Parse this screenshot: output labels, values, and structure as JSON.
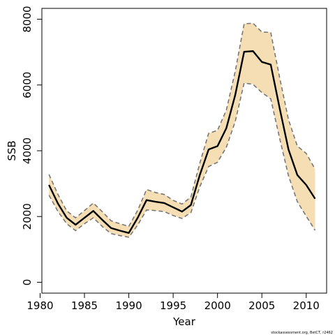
{
  "chart_data": {
    "type": "line",
    "title": "",
    "xlabel": "Year",
    "ylabel": "SSB",
    "xlim": [
      1980.2,
      2012.3
    ],
    "ylim": [
      -330,
      8330
    ],
    "x_ticks": [
      1980,
      1985,
      1990,
      1995,
      2000,
      2005,
      2010
    ],
    "y_ticks": [
      0,
      2000,
      4000,
      6000,
      8000
    ],
    "grid": false,
    "legend": "none",
    "x": [
      1981,
      1982,
      1983,
      1984,
      1985,
      1986,
      1987,
      1988,
      1989,
      1990,
      1991,
      1992,
      1993,
      1994,
      1995,
      1996,
      1997,
      1998,
      1999,
      2000,
      2001,
      2002,
      2003,
      2004,
      2005,
      2006,
      2007,
      2008,
      2009,
      2010,
      2011
    ],
    "series": [
      {
        "role": "estimate",
        "values": [
          2960,
          2400,
          1960,
          1750,
          1960,
          2170,
          1900,
          1650,
          1570,
          1500,
          1960,
          2500,
          2450,
          2410,
          2280,
          2150,
          2350,
          3260,
          4040,
          4140,
          4690,
          5700,
          7010,
          7030,
          6700,
          6620,
          5300,
          4040,
          3260,
          2960,
          2540
        ]
      },
      {
        "role": "upper",
        "values": [
          3280,
          2680,
          2170,
          1960,
          2180,
          2410,
          2150,
          1870,
          1780,
          1700,
          2190,
          2820,
          2730,
          2670,
          2490,
          2380,
          2590,
          3620,
          4530,
          4620,
          5240,
          6420,
          7860,
          7880,
          7610,
          7600,
          6230,
          4950,
          4140,
          3920,
          3440
        ]
      },
      {
        "role": "lower",
        "values": [
          2650,
          2160,
          1780,
          1570,
          1780,
          1960,
          1700,
          1480,
          1420,
          1370,
          1740,
          2200,
          2180,
          2150,
          2030,
          1940,
          2120,
          2900,
          3520,
          3650,
          4110,
          4890,
          6060,
          6020,
          5770,
          5580,
          4380,
          3240,
          2450,
          2010,
          1580
        ]
      }
    ],
    "colors": {
      "band": "#f5deb3",
      "estimate": "#000000",
      "bounds": "#777777",
      "axis": "#000000"
    }
  },
  "credit": "stockassessment.org, BetCT, r2462"
}
